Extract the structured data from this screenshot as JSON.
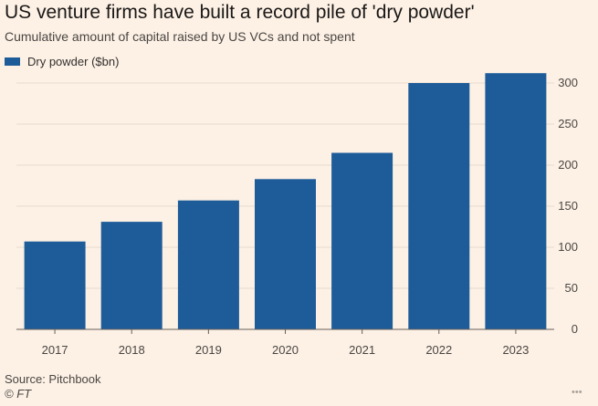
{
  "header": {
    "title": "US venture firms have built a record pile of 'dry powder'",
    "subtitle": "Cumulative amount of capital raised by US VCs and not spent"
  },
  "footer": {
    "source": "Source: Pitchbook",
    "credit": "© FT"
  },
  "colors": {
    "bar": "#1e5c99",
    "background": "#fdf1e5",
    "grid": "#e6d9ce",
    "axis": "#66605c"
  },
  "chart_data": {
    "type": "bar",
    "title": "US venture firms have built a record pile of 'dry powder'",
    "subtitle": "Cumulative amount of capital raised by US VCs and not spent",
    "categories": [
      "2017",
      "2018",
      "2019",
      "2020",
      "2021",
      "2022",
      "2023"
    ],
    "series": [
      {
        "name": "Dry powder ($bn)",
        "values": [
          107,
          131,
          157,
          183,
          215,
          300,
          312
        ]
      }
    ],
    "xlabel": "",
    "ylabel": "",
    "ylim": [
      0,
      330
    ],
    "yticks": [
      0,
      50,
      100,
      150,
      200,
      250,
      300
    ],
    "grid": true,
    "y_axis_side": "right",
    "legend_position": "top-left"
  }
}
